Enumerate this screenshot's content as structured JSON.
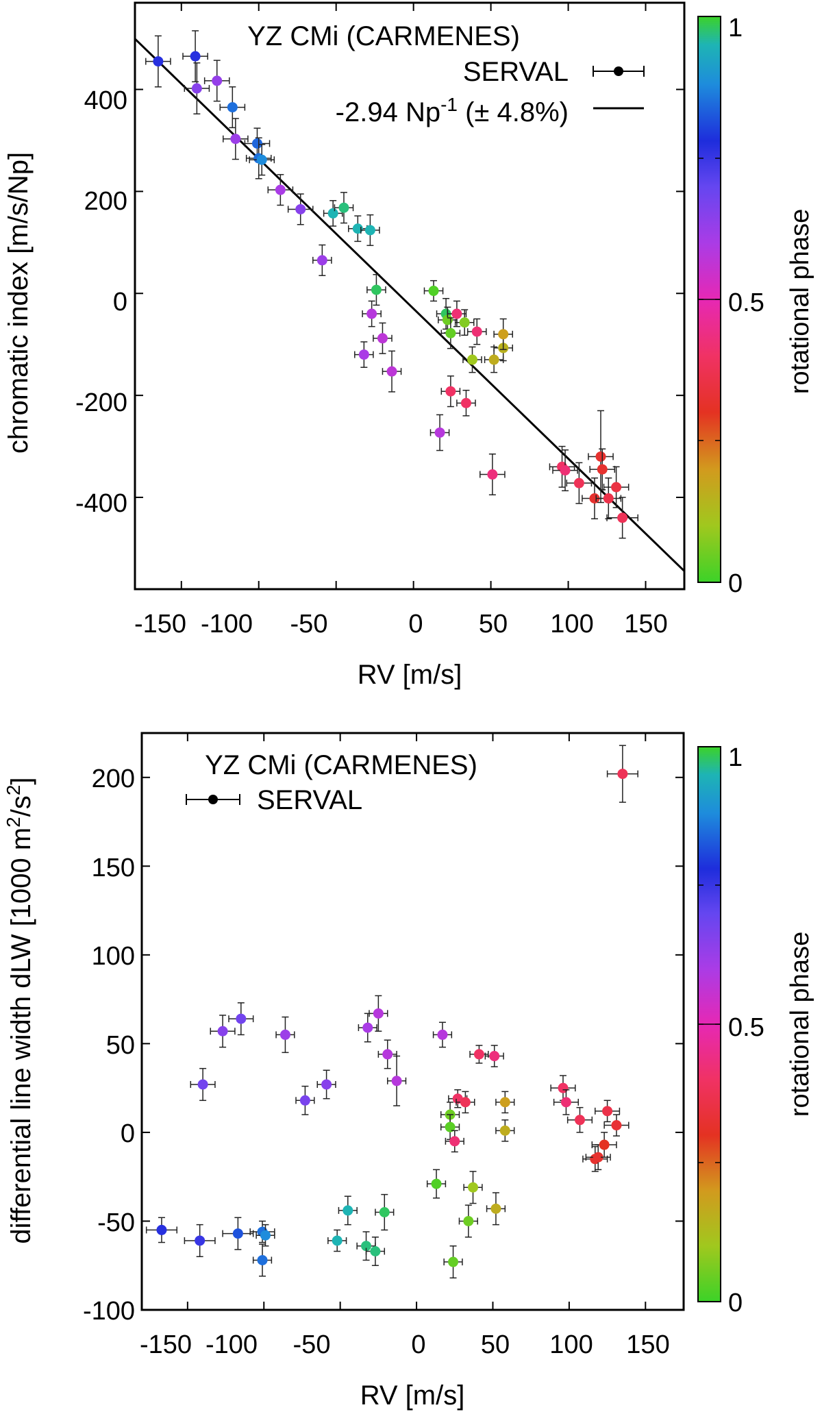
{
  "chart_data": [
    {
      "type": "scatter",
      "title": "YZ CMi (CARMENES)",
      "legend_label": "SERVAL",
      "fit_label": "-2.94 Np",
      "fit_sup": "-1",
      "fit_unc": "(± 4.8%)",
      "xlabel": "RV [m/s]",
      "ylabel": "chromatic index [m/s/Np]",
      "colorbar_label": "rotational phase",
      "xlim": [
        -180,
        175
      ],
      "ylim": [
        -580,
        570
      ],
      "xticks": [
        -150,
        -100,
        -50,
        0,
        50,
        100,
        150
      ],
      "xticklabels": [
        "-150",
        "-100",
        "-50",
        "0",
        "50",
        "100",
        "150"
      ],
      "yticks": [
        -400,
        -200,
        0,
        200,
        400
      ],
      "yticklabels": [
        "-400",
        "-200",
        "0",
        "200",
        "400"
      ],
      "colorbar_ticks": [
        0,
        0.5,
        1
      ],
      "colorbar_ticklabels": [
        "0",
        "0.5",
        "1"
      ],
      "fit_line": {
        "slope": -2.94,
        "intercept": -30
      },
      "points": [
        {
          "x": -165,
          "y": 455,
          "xerr": 8,
          "yerr": 50,
          "phase": 0.77
        },
        {
          "x": -141,
          "y": 465,
          "xerr": 8,
          "yerr": 50,
          "phase": 0.77
        },
        {
          "x": -140,
          "y": 402,
          "xerr": 8,
          "yerr": 50,
          "phase": 0.65
        },
        {
          "x": -127,
          "y": 417,
          "xerr": 8,
          "yerr": 40,
          "phase": 0.63
        },
        {
          "x": -117,
          "y": 365,
          "xerr": 8,
          "yerr": 40,
          "phase": 0.85
        },
        {
          "x": -115,
          "y": 303,
          "xerr": 8,
          "yerr": 40,
          "phase": 0.62
        },
        {
          "x": -101,
          "y": 294,
          "xerr": 8,
          "yerr": 30,
          "phase": 0.84
        },
        {
          "x": -100,
          "y": 265,
          "xerr": 8,
          "yerr": 40,
          "phase": 0.85
        },
        {
          "x": -98,
          "y": 262,
          "xerr": 8,
          "yerr": 30,
          "phase": 0.88
        },
        {
          "x": -86,
          "y": 203,
          "xerr": 8,
          "yerr": 30,
          "phase": 0.6
        },
        {
          "x": -73,
          "y": 165,
          "xerr": 8,
          "yerr": 30,
          "phase": 0.65
        },
        {
          "x": -59,
          "y": 65,
          "xerr": 6,
          "yerr": 30,
          "phase": 0.62
        },
        {
          "x": -52,
          "y": 157,
          "xerr": 6,
          "yerr": 25,
          "phase": 0.95
        },
        {
          "x": -45,
          "y": 168,
          "xerr": 6,
          "yerr": 30,
          "phase": 0.97
        },
        {
          "x": -36,
          "y": 127,
          "xerr": 6,
          "yerr": 25,
          "phase": 0.95
        },
        {
          "x": -32,
          "y": -120,
          "xerr": 6,
          "yerr": 25,
          "phase": 0.6
        },
        {
          "x": -28,
          "y": 124,
          "xerr": 6,
          "yerr": 30,
          "phase": 0.95
        },
        {
          "x": -27,
          "y": -40,
          "xerr": 6,
          "yerr": 25,
          "phase": 0.58
        },
        {
          "x": -24,
          "y": 7,
          "xerr": 6,
          "yerr": 30,
          "phase": 0.98
        },
        {
          "x": -20,
          "y": -88,
          "xerr": 6,
          "yerr": 30,
          "phase": 0.57
        },
        {
          "x": -14,
          "y": -153,
          "xerr": 6,
          "yerr": 40,
          "phase": 0.57
        },
        {
          "x": 13,
          "y": 5,
          "xerr": 6,
          "yerr": 20,
          "phase": 0.02
        },
        {
          "x": 17,
          "y": -273,
          "xerr": 6,
          "yerr": 35,
          "phase": 0.58
        },
        {
          "x": 21,
          "y": -40,
          "xerr": 6,
          "yerr": 30,
          "phase": 0.98
        },
        {
          "x": 22,
          "y": -52,
          "xerr": 6,
          "yerr": 25,
          "phase": 0.05
        },
        {
          "x": 24,
          "y": -192,
          "xerr": 6,
          "yerr": 30,
          "phase": 0.4
        },
        {
          "x": 24,
          "y": -78,
          "xerr": 6,
          "yerr": 30,
          "phase": 0.04
        },
        {
          "x": 28,
          "y": -40,
          "xerr": 6,
          "yerr": 25,
          "phase": 0.42
        },
        {
          "x": 33,
          "y": -57,
          "xerr": 6,
          "yerr": 25,
          "phase": 0.07
        },
        {
          "x": 34,
          "y": -215,
          "xerr": 6,
          "yerr": 25,
          "phase": 0.4
        },
        {
          "x": 38,
          "y": -130,
          "xerr": 6,
          "yerr": 25,
          "phase": 0.1
        },
        {
          "x": 41,
          "y": -75,
          "xerr": 6,
          "yerr": 25,
          "phase": 0.42
        },
        {
          "x": 51,
          "y": -355,
          "xerr": 8,
          "yerr": 40,
          "phase": 0.43
        },
        {
          "x": 52,
          "y": -130,
          "xerr": 6,
          "yerr": 25,
          "phase": 0.16
        },
        {
          "x": 58,
          "y": -107,
          "xerr": 6,
          "yerr": 25,
          "phase": 0.15
        },
        {
          "x": 58,
          "y": -80,
          "xerr": 6,
          "yerr": 30,
          "phase": 0.19
        },
        {
          "x": 96,
          "y": -340,
          "xerr": 8,
          "yerr": 40,
          "phase": 0.4
        },
        {
          "x": 98,
          "y": -347,
          "xerr": 8,
          "yerr": 40,
          "phase": 0.42
        },
        {
          "x": 107,
          "y": -372,
          "xerr": 8,
          "yerr": 40,
          "phase": 0.38
        },
        {
          "x": 117,
          "y": -402,
          "xerr": 8,
          "yerr": 40,
          "phase": 0.32
        },
        {
          "x": 121,
          "y": -320,
          "xerr": 8,
          "yerr": 90,
          "phase": 0.32
        },
        {
          "x": 122,
          "y": -345,
          "xerr": 8,
          "yerr": 40,
          "phase": 0.32
        },
        {
          "x": 126,
          "y": -402,
          "xerr": 8,
          "yerr": 40,
          "phase": 0.36
        },
        {
          "x": 131,
          "y": -380,
          "xerr": 8,
          "yerr": 40,
          "phase": 0.35
        },
        {
          "x": 135,
          "y": -440,
          "xerr": 10,
          "yerr": 40,
          "phase": 0.38
        }
      ]
    },
    {
      "type": "scatter",
      "title": "YZ CMi (CARMENES)",
      "legend_label": "SERVAL",
      "xlabel": "RV [m/s]",
      "ylabel_main": "differential line width dLW [1000 m",
      "ylabel_sup1": "2",
      "ylabel_mid": "/s",
      "ylabel_sup2": "2",
      "ylabel_end": "]",
      "colorbar_label": "rotational phase",
      "xlim": [
        -180,
        175
      ],
      "ylim": [
        -100,
        225
      ],
      "xticks": [
        -150,
        -100,
        -50,
        0,
        50,
        100,
        150
      ],
      "xticklabels": [
        "-150",
        "-100",
        "-50",
        "0",
        "50",
        "100",
        "150"
      ],
      "yticks": [
        -100,
        -50,
        0,
        50,
        100,
        150,
        200
      ],
      "yticklabels": [
        "-100",
        "-50",
        "0",
        "50",
        "100",
        "150",
        "200"
      ],
      "colorbar_ticks": [
        0,
        0.5,
        1
      ],
      "colorbar_ticklabels": [
        "0",
        "0.5",
        "1"
      ],
      "points": [
        {
          "x": -167,
          "y": -55,
          "xerr": 10,
          "yerr": 7,
          "phase": 0.77
        },
        {
          "x": -142,
          "y": -61,
          "xerr": 10,
          "yerr": 9,
          "phase": 0.75
        },
        {
          "x": -140,
          "y": 27,
          "xerr": 8,
          "yerr": 9,
          "phase": 0.68
        },
        {
          "x": -127,
          "y": 57,
          "xerr": 8,
          "yerr": 9,
          "phase": 0.65
        },
        {
          "x": -117,
          "y": -57,
          "xerr": 10,
          "yerr": 9,
          "phase": 0.82
        },
        {
          "x": -115,
          "y": 64,
          "xerr": 8,
          "yerr": 9,
          "phase": 0.68
        },
        {
          "x": -101,
          "y": -56,
          "xerr": 8,
          "yerr": 6,
          "phase": 0.85
        },
        {
          "x": -101,
          "y": -72,
          "xerr": 6,
          "yerr": 9,
          "phase": 0.85
        },
        {
          "x": -99,
          "y": -58,
          "xerr": 6,
          "yerr": 6,
          "phase": 0.88
        },
        {
          "x": -86,
          "y": 55,
          "xerr": 6,
          "yerr": 10,
          "phase": 0.62
        },
        {
          "x": -73,
          "y": 18,
          "xerr": 6,
          "yerr": 8,
          "phase": 0.67
        },
        {
          "x": -59,
          "y": 27,
          "xerr": 6,
          "yerr": 8,
          "phase": 0.65
        },
        {
          "x": -52,
          "y": -61,
          "xerr": 6,
          "yerr": 6,
          "phase": 0.95
        },
        {
          "x": -45,
          "y": -44,
          "xerr": 6,
          "yerr": 8,
          "phase": 0.95
        },
        {
          "x": -33,
          "y": -64,
          "xerr": 6,
          "yerr": 8,
          "phase": 0.97
        },
        {
          "x": -32,
          "y": 59,
          "xerr": 6,
          "yerr": 8,
          "phase": 0.6
        },
        {
          "x": -27,
          "y": -67,
          "xerr": 6,
          "yerr": 8,
          "phase": 0.97
        },
        {
          "x": -25,
          "y": 67,
          "xerr": 6,
          "yerr": 10,
          "phase": 0.58
        },
        {
          "x": -21,
          "y": -45,
          "xerr": 6,
          "yerr": 10,
          "phase": 0.98
        },
        {
          "x": -19,
          "y": 44,
          "xerr": 6,
          "yerr": 8,
          "phase": 0.58
        },
        {
          "x": -13,
          "y": 29,
          "xerr": 6,
          "yerr": 14,
          "phase": 0.58
        },
        {
          "x": 13,
          "y": -29,
          "xerr": 6,
          "yerr": 8,
          "phase": 0.02
        },
        {
          "x": 17,
          "y": 55,
          "xerr": 6,
          "yerr": 7,
          "phase": 0.58
        },
        {
          "x": 22,
          "y": 10,
          "xerr": 6,
          "yerr": 7,
          "phase": 0.05
        },
        {
          "x": 22,
          "y": 3,
          "xerr": 6,
          "yerr": 7,
          "phase": 0.03
        },
        {
          "x": 24,
          "y": -73,
          "xerr": 6,
          "yerr": 9,
          "phase": 0.04
        },
        {
          "x": 25,
          "y": -5,
          "xerr": 6,
          "yerr": 6,
          "phase": 0.42
        },
        {
          "x": 27,
          "y": 19,
          "xerr": 6,
          "yerr": 5,
          "phase": 0.4
        },
        {
          "x": 32,
          "y": 17,
          "xerr": 6,
          "yerr": 6,
          "phase": 0.38
        },
        {
          "x": 34,
          "y": -50,
          "xerr": 6,
          "yerr": 9,
          "phase": 0.05
        },
        {
          "x": 37,
          "y": -31,
          "xerr": 6,
          "yerr": 9,
          "phase": 0.1
        },
        {
          "x": 41,
          "y": 44,
          "xerr": 6,
          "yerr": 5,
          "phase": 0.4
        },
        {
          "x": 51,
          "y": 43,
          "xerr": 6,
          "yerr": 6,
          "phase": 0.43
        },
        {
          "x": 52,
          "y": -43,
          "xerr": 6,
          "yerr": 9,
          "phase": 0.16
        },
        {
          "x": 58,
          "y": 17,
          "xerr": 6,
          "yerr": 6,
          "phase": 0.19
        },
        {
          "x": 58,
          "y": 1,
          "xerr": 6,
          "yerr": 6,
          "phase": 0.16
        },
        {
          "x": 96,
          "y": 25,
          "xerr": 8,
          "yerr": 7,
          "phase": 0.4
        },
        {
          "x": 98,
          "y": 17,
          "xerr": 8,
          "yerr": 7,
          "phase": 0.42
        },
        {
          "x": 107,
          "y": 7,
          "xerr": 8,
          "yerr": 7,
          "phase": 0.38
        },
        {
          "x": 117,
          "y": -15,
          "xerr": 8,
          "yerr": 7,
          "phase": 0.32
        },
        {
          "x": 119,
          "y": -14,
          "xerr": 8,
          "yerr": 7,
          "phase": 0.32
        },
        {
          "x": 123,
          "y": -7,
          "xerr": 8,
          "yerr": 7,
          "phase": 0.3
        },
        {
          "x": 125,
          "y": 12,
          "xerr": 8,
          "yerr": 6,
          "phase": 0.36
        },
        {
          "x": 131,
          "y": 4,
          "xerr": 8,
          "yerr": 6,
          "phase": 0.33
        },
        {
          "x": 135,
          "y": 202,
          "xerr": 10,
          "yerr": 16,
          "phase": 0.38
        }
      ]
    }
  ]
}
